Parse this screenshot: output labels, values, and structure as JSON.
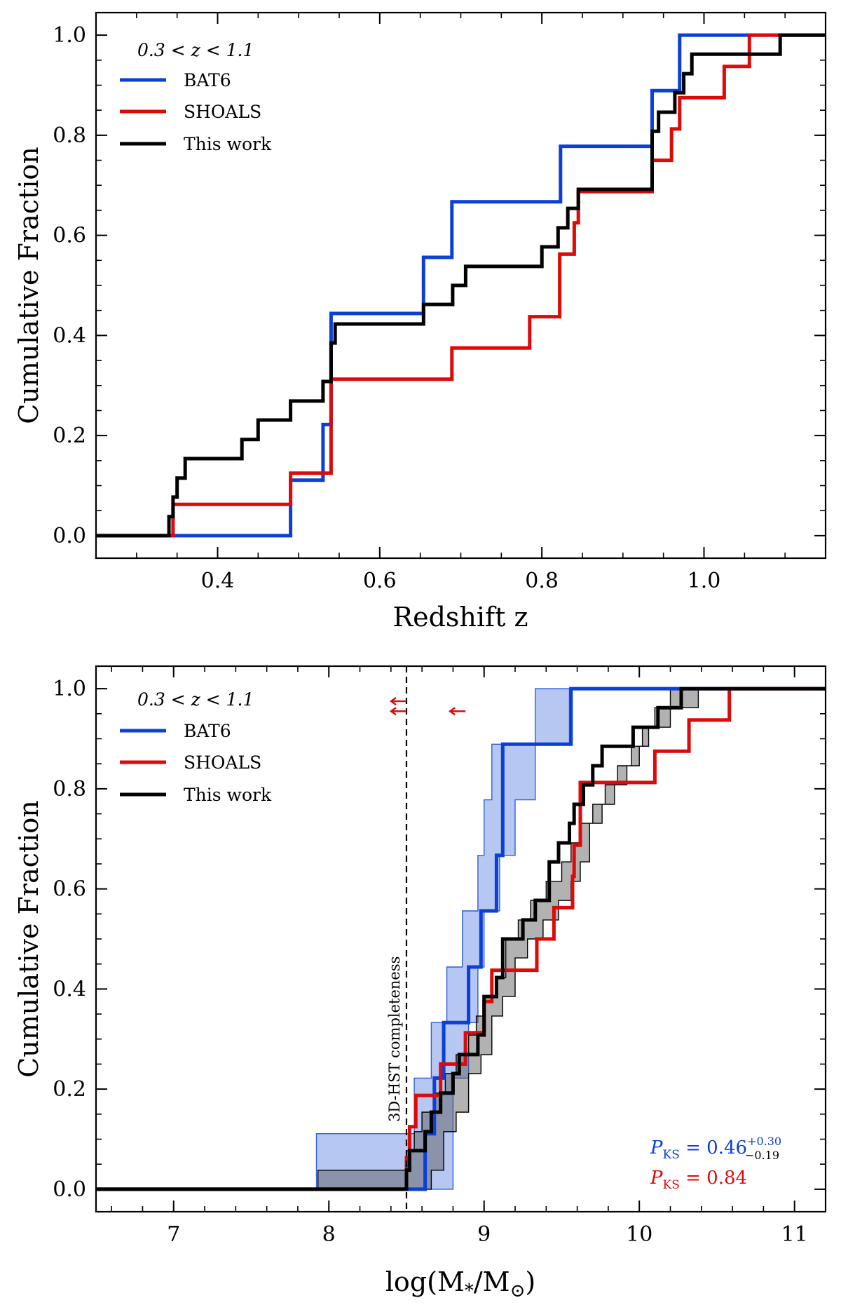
{
  "colors": {
    "bat6": "#0b3fd6",
    "shoals": "#dd0a0a",
    "this_work": "#000000",
    "bat6_band": "#2f5fd8",
    "this_band": "#555555"
  },
  "chart_data": [
    {
      "type": "line",
      "drawstyle": "steps",
      "title": "",
      "xlabel": "Redshift z",
      "ylabel": "Cumulative Fraction",
      "xlim": [
        0.25,
        1.15
      ],
      "ylim": [
        -0.045,
        1.045
      ],
      "xticks": [
        0.4,
        0.6,
        0.8,
        1.0
      ],
      "xtick_labels": [
        "0.4",
        "0.6",
        "0.8",
        "1.0"
      ],
      "yticks": [
        0.0,
        0.2,
        0.4,
        0.6,
        0.8,
        1.0
      ],
      "ytick_labels": [
        "0.0",
        "0.2",
        "0.4",
        "0.6",
        "0.8",
        "1.0"
      ],
      "legend": {
        "placement": "top-left",
        "title": "0.3 < z < 1.1",
        "entries": [
          "BAT6",
          "SHOALS",
          "This work"
        ]
      },
      "series": [
        {
          "name": "BAT6",
          "color_key": "bat6",
          "x": [
            0.25,
            0.49,
            0.53,
            0.54,
            0.654,
            0.689,
            0.823,
            0.936,
            0.97,
            1.15
          ],
          "y": [
            0.0,
            0.111,
            0.222,
            0.444,
            0.556,
            0.667,
            0.778,
            0.889,
            1.0,
            1.0
          ]
        },
        {
          "name": "SHOALS",
          "color_key": "shoals",
          "x": [
            0.25,
            0.345,
            0.49,
            0.54,
            0.689,
            0.785,
            0.822,
            0.84,
            0.845,
            0.936,
            0.96,
            0.97,
            1.025,
            1.056,
            1.09,
            1.15
          ],
          "y": [
            0.0,
            0.0625,
            0.125,
            0.3125,
            0.375,
            0.4375,
            0.5625,
            0.625,
            0.6875,
            0.75,
            0.8125,
            0.875,
            0.9375,
            1.0,
            1.0,
            1.0
          ],
          "x_note": "SHOALS reaches 1.0 at z~1.056 (flat afterwards)"
        },
        {
          "name": "This work",
          "color_key": "this_work",
          "x": [
            0.25,
            0.34,
            0.345,
            0.35,
            0.36,
            0.43,
            0.45,
            0.49,
            0.53,
            0.54,
            0.545,
            0.654,
            0.69,
            0.706,
            0.8,
            0.82,
            0.832,
            0.845,
            0.86,
            0.936,
            0.944,
            0.964,
            0.975,
            0.985,
            1.02,
            1.094,
            1.15
          ],
          "y": [
            0.0,
            0.038,
            0.077,
            0.115,
            0.154,
            0.192,
            0.231,
            0.269,
            0.308,
            0.385,
            0.423,
            0.462,
            0.5,
            0.538,
            0.577,
            0.615,
            0.654,
            0.692,
            0.692,
            0.808,
            0.846,
            0.885,
            0.923,
            0.962,
            0.962,
            1.0,
            1.0
          ]
        }
      ]
    },
    {
      "type": "line",
      "drawstyle": "steps",
      "title": "",
      "xlabel": "log(M*/M⊙)",
      "xlabel_parts": {
        "main": "log(M",
        "sub1": "*",
        "mid": "/M",
        "sub2": "⊙",
        "end": ")"
      },
      "ylabel": "Cumulative Fraction",
      "xlim": [
        6.5,
        11.2
      ],
      "ylim": [
        -0.045,
        1.045
      ],
      "xticks": [
        7,
        8,
        9,
        10,
        11
      ],
      "xtick_labels": [
        "7",
        "8",
        "9",
        "10",
        "11"
      ],
      "yticks": [
        0.0,
        0.2,
        0.4,
        0.6,
        0.8,
        1.0
      ],
      "ytick_labels": [
        "0.0",
        "0.2",
        "0.4",
        "0.6",
        "0.8",
        "1.0"
      ],
      "legend": {
        "placement": "top-left",
        "title": "0.3 < z < 1.1",
        "entries": [
          "BAT6",
          "SHOALS",
          "This work"
        ]
      },
      "vline": {
        "x": 8.5,
        "label": "3D-HST completeness"
      },
      "upper_limit_arrows": [
        {
          "x": 8.5,
          "y": 0.975,
          "series": "SHOALS"
        },
        {
          "x": 8.5,
          "y": 0.955,
          "series": "SHOALS"
        },
        {
          "x": 8.88,
          "y": 0.955,
          "series": "SHOALS"
        }
      ],
      "annotations": {
        "pks_bat6": {
          "label": "P",
          "sub": "KS",
          "text": " = 0.46",
          "sup": "+0.30",
          "subscript": "−0.19"
        },
        "pks_shoals": {
          "label": "P",
          "sub": "KS",
          "text": " = 0.84"
        }
      },
      "bands": [
        {
          "name": "BAT6 range",
          "color_key": "bat6_band",
          "upper": {
            "x": [
              7.92,
              8.55,
              8.66,
              8.76,
              8.86,
              8.96,
              9.0,
              9.05,
              9.25,
              9.33,
              9.85
            ],
            "y": [
              0.111,
              0.222,
              0.333,
              0.444,
              0.556,
              0.667,
              0.778,
              0.889,
              0.889,
              1.0,
              1.0
            ]
          },
          "lower": {
            "x": [
              7.92,
              8.8,
              8.9,
              8.96,
              9.0,
              9.1,
              9.2,
              9.33,
              9.45,
              9.55,
              9.85
            ],
            "y": [
              0.0,
              0.222,
              0.333,
              0.444,
              0.556,
              0.667,
              0.778,
              0.889,
              0.889,
              1.0,
              1.0
            ]
          }
        },
        {
          "name": "This work range",
          "color_key": "this_band",
          "upper": {
            "x": [
              7.93,
              8.5,
              8.55,
              8.6,
              8.68,
              8.75,
              8.82,
              8.9,
              8.95,
              9.0,
              9.08,
              9.14,
              9.22,
              9.3,
              9.4,
              9.5,
              9.56,
              9.62,
              9.7,
              9.78,
              9.86,
              9.95,
              10.02,
              10.1,
              10.2,
              10.3,
              10.48
            ],
            "y": [
              0.038,
              0.077,
              0.115,
              0.154,
              0.192,
              0.231,
              0.269,
              0.308,
              0.346,
              0.385,
              0.423,
              0.5,
              0.538,
              0.577,
              0.615,
              0.654,
              0.692,
              0.731,
              0.769,
              0.808,
              0.846,
              0.885,
              0.923,
              0.962,
              1.0,
              1.0,
              1.0
            ]
          },
          "lower": {
            "x": [
              7.93,
              8.66,
              8.74,
              8.82,
              8.9,
              8.98,
              9.05,
              9.12,
              9.2,
              9.28,
              9.38,
              9.48,
              9.56,
              9.62,
              9.68,
              9.76,
              9.84,
              9.92,
              10.0,
              10.06,
              10.12,
              10.2,
              10.28,
              10.38,
              10.48
            ],
            "y": [
              0.0,
              0.038,
              0.115,
              0.154,
              0.231,
              0.269,
              0.346,
              0.385,
              0.462,
              0.5,
              0.538,
              0.577,
              0.615,
              0.654,
              0.731,
              0.769,
              0.808,
              0.846,
              0.885,
              0.923,
              0.923,
              0.962,
              0.962,
              1.0,
              1.0
            ]
          }
        }
      ],
      "series": [
        {
          "name": "BAT6",
          "color_key": "bat6",
          "x": [
            6.5,
            8.62,
            8.68,
            8.74,
            8.9,
            8.98,
            9.08,
            9.12,
            9.56,
            11.2
          ],
          "y": [
            0.0,
            0.111,
            0.222,
            0.333,
            0.444,
            0.556,
            0.667,
            0.889,
            1.0,
            1.0
          ]
        },
        {
          "name": "SHOALS",
          "color_key": "shoals",
          "x": [
            6.5,
            8.5,
            8.52,
            8.56,
            8.72,
            8.88,
            9.0,
            9.05,
            9.34,
            9.45,
            9.57,
            9.58,
            9.62,
            10.1,
            10.32,
            10.58,
            11.2
          ],
          "y": [
            0.0,
            0.0625,
            0.125,
            0.1875,
            0.25,
            0.3125,
            0.375,
            0.4375,
            0.5,
            0.5625,
            0.625,
            0.6875,
            0.8125,
            0.875,
            0.9375,
            1.0,
            1.0
          ]
        },
        {
          "name": "This work",
          "color_key": "this_work",
          "x": [
            6.5,
            8.5,
            8.52,
            8.62,
            8.66,
            8.72,
            8.8,
            8.84,
            8.96,
            9.0,
            9.08,
            9.12,
            9.25,
            9.33,
            9.42,
            9.48,
            9.55,
            9.58,
            9.64,
            9.7,
            9.76,
            9.86,
            9.96,
            10.06,
            10.12,
            10.17,
            10.27,
            11.2
          ],
          "y": [
            0.0,
            0.038,
            0.077,
            0.115,
            0.154,
            0.192,
            0.231,
            0.269,
            0.308,
            0.385,
            0.423,
            0.5,
            0.538,
            0.577,
            0.654,
            0.692,
            0.731,
            0.769,
            0.808,
            0.846,
            0.885,
            0.885,
            0.923,
            0.923,
            0.962,
            0.962,
            1.0,
            1.0
          ]
        }
      ]
    }
  ]
}
